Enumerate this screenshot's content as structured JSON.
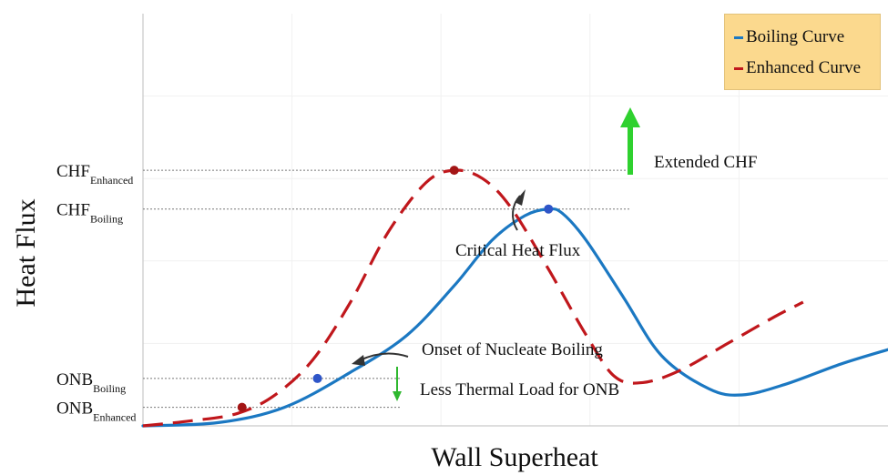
{
  "chart_data": {
    "type": "line",
    "title": "",
    "xlabel": "Wall Superheat",
    "ylabel": "Heat Flux",
    "series": [
      {
        "name": "Boiling Curve",
        "color": "#1b78c2",
        "dash": "solid",
        "points": [
          [
            0,
            0
          ],
          [
            0.08,
            0.008
          ],
          [
            0.15,
            0.045
          ],
          [
            0.22,
            0.13
          ],
          [
            0.28,
            0.22
          ],
          [
            0.33,
            0.34
          ],
          [
            0.37,
            0.45
          ],
          [
            0.405,
            0.51
          ],
          [
            0.43,
            0.526
          ],
          [
            0.445,
            0.515
          ],
          [
            0.47,
            0.45
          ],
          [
            0.51,
            0.31
          ],
          [
            0.55,
            0.17
          ],
          [
            0.6,
            0.09
          ],
          [
            0.635,
            0.075
          ],
          [
            0.68,
            0.1
          ],
          [
            0.74,
            0.15
          ],
          [
            0.79,
            0.185
          ]
        ]
      },
      {
        "name": "Enhanced Curve",
        "color": "#c0171c",
        "dash": "dashed",
        "points": [
          [
            0,
            0
          ],
          [
            0.05,
            0.012
          ],
          [
            0.1,
            0.03
          ],
          [
            0.14,
            0.075
          ],
          [
            0.18,
            0.16
          ],
          [
            0.22,
            0.3
          ],
          [
            0.26,
            0.47
          ],
          [
            0.3,
            0.59
          ],
          [
            0.33,
            0.62
          ],
          [
            0.36,
            0.6
          ],
          [
            0.39,
            0.53
          ],
          [
            0.43,
            0.38
          ],
          [
            0.47,
            0.22
          ],
          [
            0.5,
            0.12
          ],
          [
            0.53,
            0.105
          ],
          [
            0.57,
            0.135
          ],
          [
            0.62,
            0.2
          ],
          [
            0.67,
            0.265
          ],
          [
            0.7,
            0.3
          ]
        ]
      }
    ],
    "markers": [
      {
        "x": 0.105,
        "y": 0.045,
        "color": "#a31515"
      },
      {
        "x": 0.185,
        "y": 0.115,
        "color": "#2e55c8"
      },
      {
        "x": 0.33,
        "y": 0.62,
        "color": "#a31515"
      },
      {
        "x": 0.43,
        "y": 0.526,
        "color": "#2e55c8"
      }
    ],
    "ylim": [
      0,
      1
    ],
    "xlim": [
      0,
      0.79
    ],
    "y_ticks": [
      {
        "main": "CHF",
        "sub": "Enhanced",
        "value": 0.62
      },
      {
        "main": "CHF",
        "sub": "Boiling",
        "value": 0.526
      },
      {
        "main": "ONB",
        "sub": "Boiling",
        "value": 0.115
      },
      {
        "main": "ONB",
        "sub": "Enhanced",
        "value": 0.045
      }
    ],
    "annotations": {
      "extended_chf": "Extended CHF",
      "critical_heat_flux": "Critical Heat Flux",
      "onset": "Onset of Nucleate Boiling",
      "less_thermal": "Less Thermal Load for ONB"
    },
    "legend": {
      "position": "top-right",
      "background": "#fbd98e"
    },
    "grid": true
  }
}
